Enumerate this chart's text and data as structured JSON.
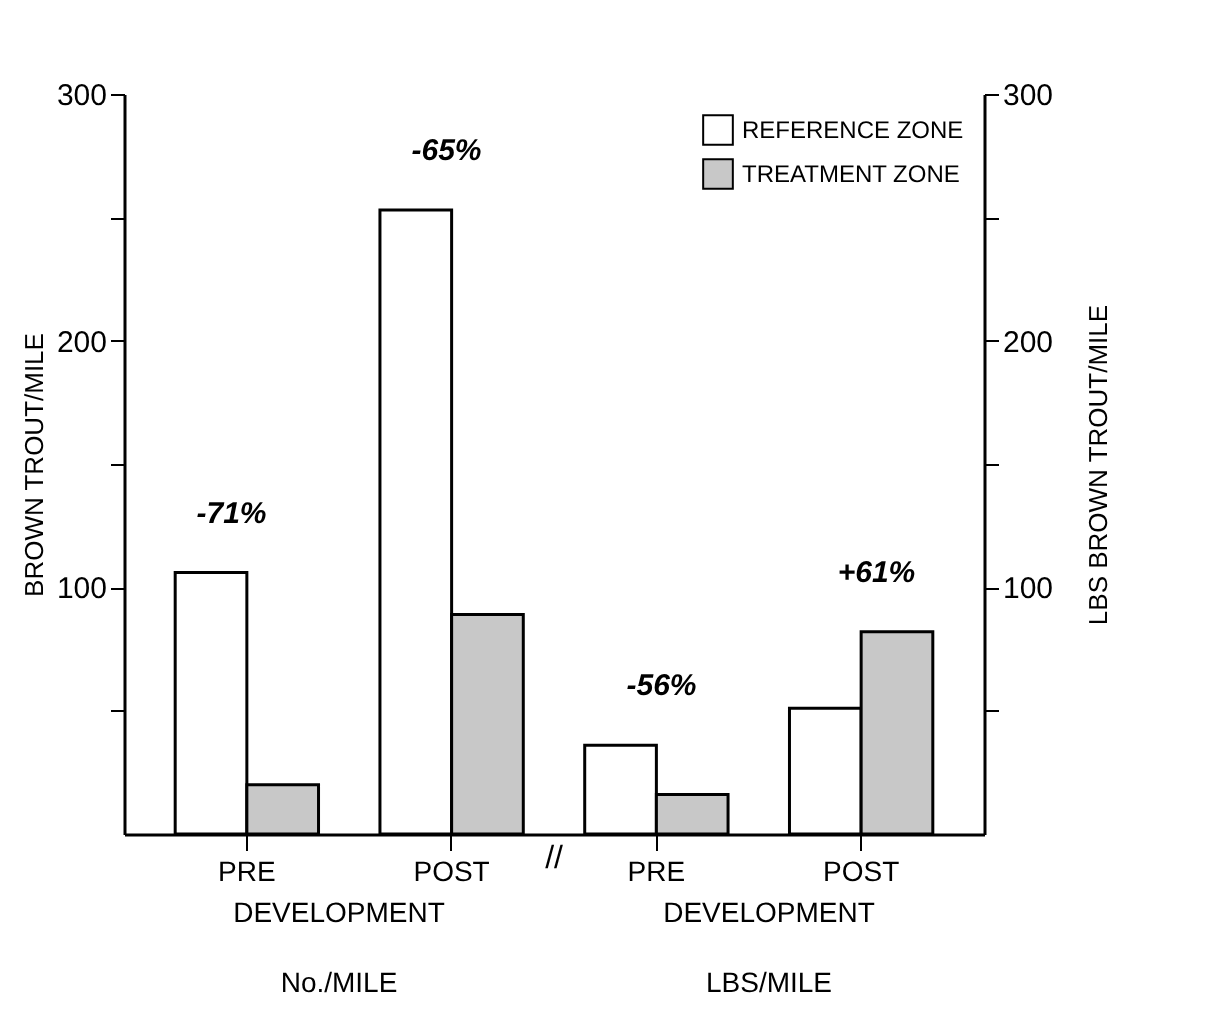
{
  "chart_data": {
    "type": "bar",
    "ylabel": "BROWN TROUT/MILE",
    "y2label": "LBS BROWN TROUT/MILE",
    "categories": [
      "PRE",
      "POST",
      "PRE",
      "POST"
    ],
    "series": [
      {
        "name": "REFERENCE ZONE",
        "color": "#ffffff",
        "values": [
          106,
          253,
          36,
          51
        ]
      },
      {
        "name": "TREATMENT ZONE",
        "color": "#c8c8c8",
        "values": [
          20,
          89,
          16,
          82
        ]
      }
    ],
    "ylim": [
      0,
      300
    ],
    "yticks": [
      {
        "value": 50,
        "label": null
      },
      100,
      {
        "value": 150,
        "label": null
      },
      200,
      {
        "value": 250,
        "label": null
      },
      300
    ],
    "y2lim": [
      0,
      300
    ],
    "y2ticks": [
      {
        "value": 50,
        "label": null
      },
      100,
      {
        "value": 150,
        "label": null
      },
      200,
      {
        "value": 250,
        "label": null
      },
      300
    ],
    "annotations": [
      "-71%",
      "-65%",
      "-56%",
      "+61%",
      "DEVELOPMENT",
      "DEVELOPMENT",
      "No./MILE",
      "LBS/MILE",
      "//"
    ],
    "legend": "top right",
    "grid": false
  }
}
